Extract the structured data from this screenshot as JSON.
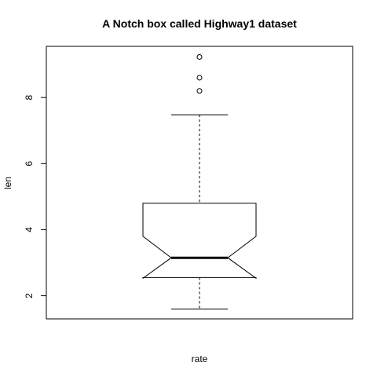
{
  "chart_data": {
    "type": "box",
    "variant": "notched",
    "title": "A Notch box called Highway1 dataset",
    "xlabel": "rate",
    "ylabel": "len",
    "ylim": [
      1.3,
      9.55
    ],
    "yticks": [
      2,
      4,
      6,
      8
    ],
    "box": {
      "whisker_low": 1.6,
      "q1": 2.55,
      "median": 3.15,
      "q3": 4.8,
      "whisker_high": 7.48,
      "notch_low": 2.53,
      "notch_high": 3.8,
      "outliers": [
        8.2,
        8.6,
        9.23
      ]
    }
  }
}
